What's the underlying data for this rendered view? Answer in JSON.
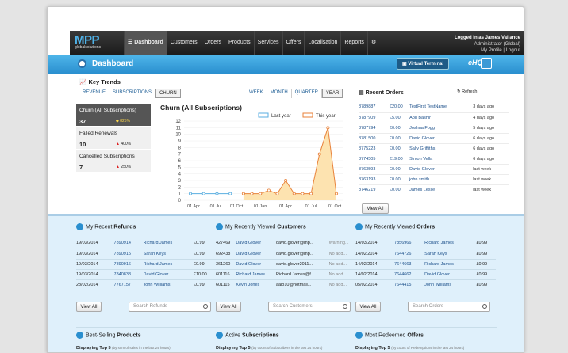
{
  "brand": {
    "logo": "MPP",
    "logo_sub": "globalsolutions"
  },
  "nav": {
    "items": [
      "Dashboard",
      "Customers",
      "Orders",
      "Products",
      "Services",
      "Offers",
      "Localisation",
      "Reports"
    ],
    "active": "Dashboard"
  },
  "user": {
    "logged_in": "Logged in as James Vallance",
    "role": "Administrator (Global)",
    "links": "My Profile | Logout"
  },
  "header": {
    "title": "Dashboard",
    "virtual_terminal": "Virtual Terminal",
    "ehq": "eHQ"
  },
  "key_trends": {
    "title": "Key Trends",
    "tabs": [
      "REVENUE",
      "SUBSCRIPTIONS",
      "CHURN"
    ],
    "active_tab": "CHURN",
    "periods": [
      "WEEK",
      "MONTH",
      "QUARTER",
      "YEAR"
    ],
    "active_period": "YEAR",
    "kpis": [
      {
        "label": "Churn (All Subscriptions)",
        "value": "37",
        "change": "825%",
        "direction": "up"
      },
      {
        "label": "Failed Renewals",
        "value": "10",
        "change": "400%",
        "direction": "up"
      },
      {
        "label": "Cancelled Subscriptions",
        "value": "7",
        "change": "250%",
        "direction": "up"
      }
    ]
  },
  "chart_data": {
    "type": "line",
    "title": "Churn (All Subscriptions)",
    "ylim": [
      0,
      12
    ],
    "yticks": [
      "0",
      "1",
      "2",
      "3",
      "4",
      "5",
      "6",
      "7",
      "8",
      "9",
      "10",
      "11",
      "12"
    ],
    "xticks": [
      "01 Apr",
      "01 Jul",
      "01 Oct",
      "01 Jan",
      "01 Apr",
      "01 Jul",
      "01 Oct"
    ],
    "legend": [
      "Last year",
      "This year"
    ],
    "colors": {
      "last_year": "#5aaee0",
      "this_year": "#e8823a",
      "fill": "#fde3b0"
    },
    "series": [
      {
        "name": "Last year",
        "x": [
          0,
          1,
          2,
          3
        ],
        "values": [
          1,
          1,
          1,
          1
        ]
      },
      {
        "name": "This year",
        "x": [
          0,
          1,
          2,
          3,
          4,
          5,
          6,
          7,
          8,
          9,
          10,
          11
        ],
        "values": [
          1,
          1,
          1,
          1.5,
          1,
          3,
          1,
          1,
          1,
          7,
          11,
          1
        ]
      }
    ]
  },
  "recent_orders": {
    "title": "Recent Orders",
    "refresh": "Refresh",
    "rows": [
      [
        "8789887",
        "€20.00",
        "TestFirst TestName",
        "3 days ago"
      ],
      [
        "8787909",
        "£5.00",
        "Abu Bashir",
        "4 days ago"
      ],
      [
        "8787794",
        "£0.00",
        "Joshua Fogg",
        "5 days ago"
      ],
      [
        "8781500",
        "£0.00",
        "David Glover",
        "6 days ago"
      ],
      [
        "8775223",
        "£0.00",
        "Sally Griffiths",
        "6 days ago"
      ],
      [
        "8774505",
        "£19.00",
        "Simon Vella",
        "6 days ago"
      ],
      [
        "8763593",
        "£0.00",
        "David Glover",
        "last week"
      ],
      [
        "8763193",
        "£0.00",
        "john smith",
        "last week"
      ],
      [
        "8746219",
        "£0.00",
        "James Leslie",
        "last week"
      ]
    ],
    "view_all": "View All"
  },
  "refunds": {
    "title_pre": "My Recent ",
    "title_b": "Refunds",
    "rows": [
      [
        "19/03/2014",
        "7890914",
        "Richard James",
        "£0.99"
      ],
      [
        "19/03/2014",
        "7890915",
        "Sarah Keys",
        "£0.99"
      ],
      [
        "19/03/2014",
        "7890916",
        "Richard James",
        "£0.99"
      ],
      [
        "19/03/2014",
        "7840838",
        "David Glover",
        "£10.00"
      ],
      [
        "28/02/2014",
        "7767157",
        "John Williams",
        "£0.99"
      ]
    ],
    "view_all": "View All",
    "search": "Search Refunds"
  },
  "customers": {
    "title_pre": "My Recently Viewed ",
    "title_b": "Customers",
    "rows": [
      [
        "427469",
        "David Glover",
        "david.glover@mp...",
        "Warning..."
      ],
      [
        "692438",
        "David Glover",
        "david.glover@mp...",
        "No add..."
      ],
      [
        "361260",
        "David Glover",
        "david.glover2011...",
        "No add..."
      ],
      [
        "601116",
        "Richard James",
        "Richard.James@f...",
        "No add..."
      ],
      [
        "601115",
        "Kevin Jones",
        "aalo10@hotmail...",
        "No add..."
      ]
    ],
    "view_all": "View All",
    "search": "Search Customers"
  },
  "orders": {
    "title_pre": "My Recently Viewed ",
    "title_b": "Orders",
    "rows": [
      [
        "14/03/2014",
        "7856966",
        "Richard James",
        "£0.99"
      ],
      [
        "14/02/2014",
        "7644726",
        "Sarah Keys",
        "£0.99"
      ],
      [
        "14/02/2014",
        "7644663",
        "Richard James",
        "£0.99"
      ],
      [
        "14/02/2014",
        "7644662",
        "David Glover",
        "£0.99"
      ],
      [
        "05/02/2014",
        "7644415",
        "John Williams",
        "£0.99"
      ]
    ],
    "view_all": "View All",
    "search": "Search Orders"
  },
  "bottom": [
    {
      "title_pre": "Best-Selling ",
      "title_b": "Products",
      "top": "Displaying Top 5",
      "note": "(by sum of sales in the last 24 hours)"
    },
    {
      "title_pre": "Active ",
      "title_b": "Subscriptions",
      "top": "Displaying Top 5",
      "note": "(by count of Subscribers in the last 24 hours)"
    },
    {
      "title_pre": "Most Redeemed ",
      "title_b": "Offers",
      "top": "Displaying Top 5",
      "note": "(by count of Redemptions in the last 24 hours)"
    }
  ]
}
